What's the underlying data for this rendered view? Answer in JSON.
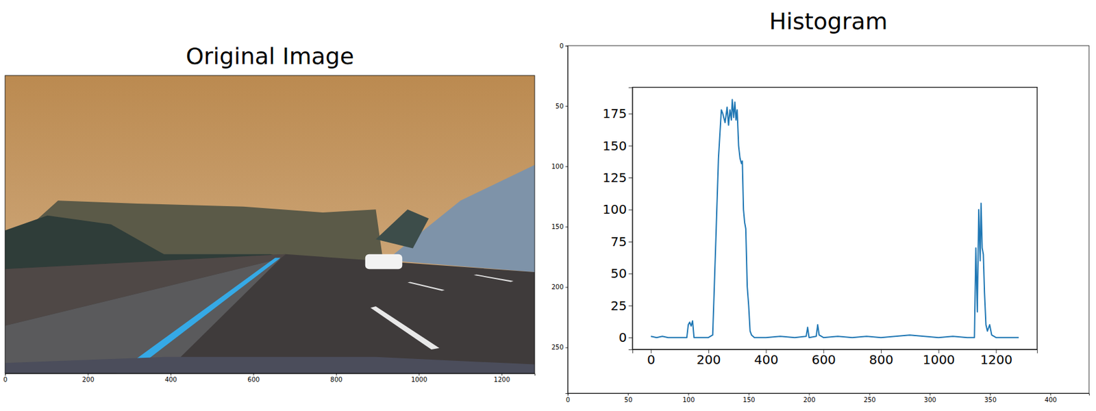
{
  "chart_data": [
    {
      "type": "image",
      "title": "Original Image",
      "xlim": [
        0,
        1280
      ],
      "ylim": [
        720,
        0
      ],
      "xticks": [
        0,
        200,
        400,
        600,
        800,
        1000,
        1200
      ],
      "tick_labels": "x"
    },
    {
      "type": "image",
      "title": "Histogram",
      "xlim": [
        0,
        432
      ],
      "ylim": [
        288,
        0
      ],
      "xticks": [
        0,
        50,
        100,
        150,
        200,
        250,
        300,
        350,
        400
      ],
      "yticks": [
        0,
        50,
        100,
        150,
        200,
        250
      ]
    },
    {
      "type": "line",
      "x": [
        0,
        20,
        40,
        60,
        100,
        125,
        130,
        135,
        140,
        145,
        150,
        200,
        215,
        225,
        235,
        245,
        250,
        258,
        265,
        270,
        275,
        280,
        283,
        288,
        292,
        296,
        300,
        305,
        310,
        315,
        318,
        322,
        326,
        330,
        335,
        340,
        345,
        350,
        360,
        400,
        450,
        500,
        540,
        545,
        550,
        575,
        580,
        585,
        600,
        650,
        700,
        750,
        800,
        850,
        900,
        950,
        1000,
        1050,
        1100,
        1125,
        1130,
        1135,
        1140,
        1145,
        1148,
        1152,
        1156,
        1160,
        1165,
        1170,
        1178,
        1185,
        1200,
        1250,
        1279
      ],
      "series": [
        {
          "color": "#1f77b4",
          "values": [
            1,
            0,
            1,
            0,
            0,
            0,
            10,
            12,
            9,
            13,
            0,
            0,
            2,
            70,
            140,
            178,
            175,
            168,
            180,
            166,
            178,
            170,
            186,
            172,
            184,
            170,
            178,
            150,
            140,
            136,
            138,
            100,
            90,
            85,
            40,
            25,
            5,
            2,
            0,
            0,
            1,
            0,
            1,
            8,
            0,
            1,
            10,
            2,
            0,
            1,
            0,
            1,
            0,
            1,
            2,
            1,
            0,
            1,
            0,
            0,
            70,
            20,
            100,
            60,
            105,
            70,
            65,
            35,
            10,
            5,
            10,
            2,
            0,
            0,
            0
          ]
        }
      ],
      "xlim": [
        -64,
        1343
      ],
      "ylim": [
        -9.3,
        195.6
      ],
      "xticks": [
        0,
        200,
        400,
        600,
        800,
        1000,
        1200
      ],
      "yticks": [
        0,
        25,
        50,
        75,
        100,
        125,
        150,
        175
      ]
    }
  ]
}
